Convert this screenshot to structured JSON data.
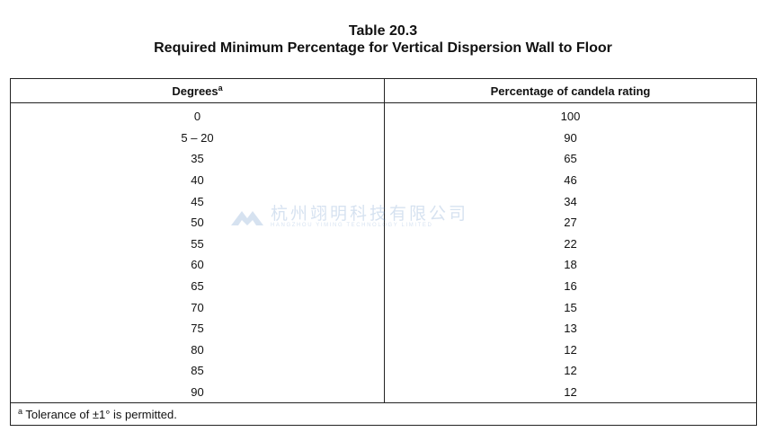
{
  "title": {
    "line1": "Table 20.3",
    "line2": "Required Minimum Percentage for Vertical Dispersion Wall to Floor"
  },
  "table": {
    "headers": {
      "degrees": "Degrees",
      "degrees_sup": "a",
      "percentage": "Percentage of candela rating"
    },
    "rows": [
      {
        "degrees": "0",
        "percentage": "100"
      },
      {
        "degrees": "5 – 20",
        "percentage": "90"
      },
      {
        "degrees": "35",
        "percentage": "65"
      },
      {
        "degrees": "40",
        "percentage": "46"
      },
      {
        "degrees": "45",
        "percentage": "34"
      },
      {
        "degrees": "50",
        "percentage": "27"
      },
      {
        "degrees": "55",
        "percentage": "22"
      },
      {
        "degrees": "60",
        "percentage": "18"
      },
      {
        "degrees": "65",
        "percentage": "16"
      },
      {
        "degrees": "70",
        "percentage": "15"
      },
      {
        "degrees": "75",
        "percentage": "13"
      },
      {
        "degrees": "80",
        "percentage": "12"
      },
      {
        "degrees": "85",
        "percentage": "12"
      },
      {
        "degrees": "90",
        "percentage": "12"
      }
    ],
    "footnote": {
      "sup": "a",
      "text": " Tolerance of ±1° is permitted."
    }
  },
  "watermark": {
    "chinese": "杭州翊明科技有限公司",
    "english": "HANGZHOU YIMING TECHNOLOGY LIMITED",
    "color": "#4a7fc0"
  }
}
